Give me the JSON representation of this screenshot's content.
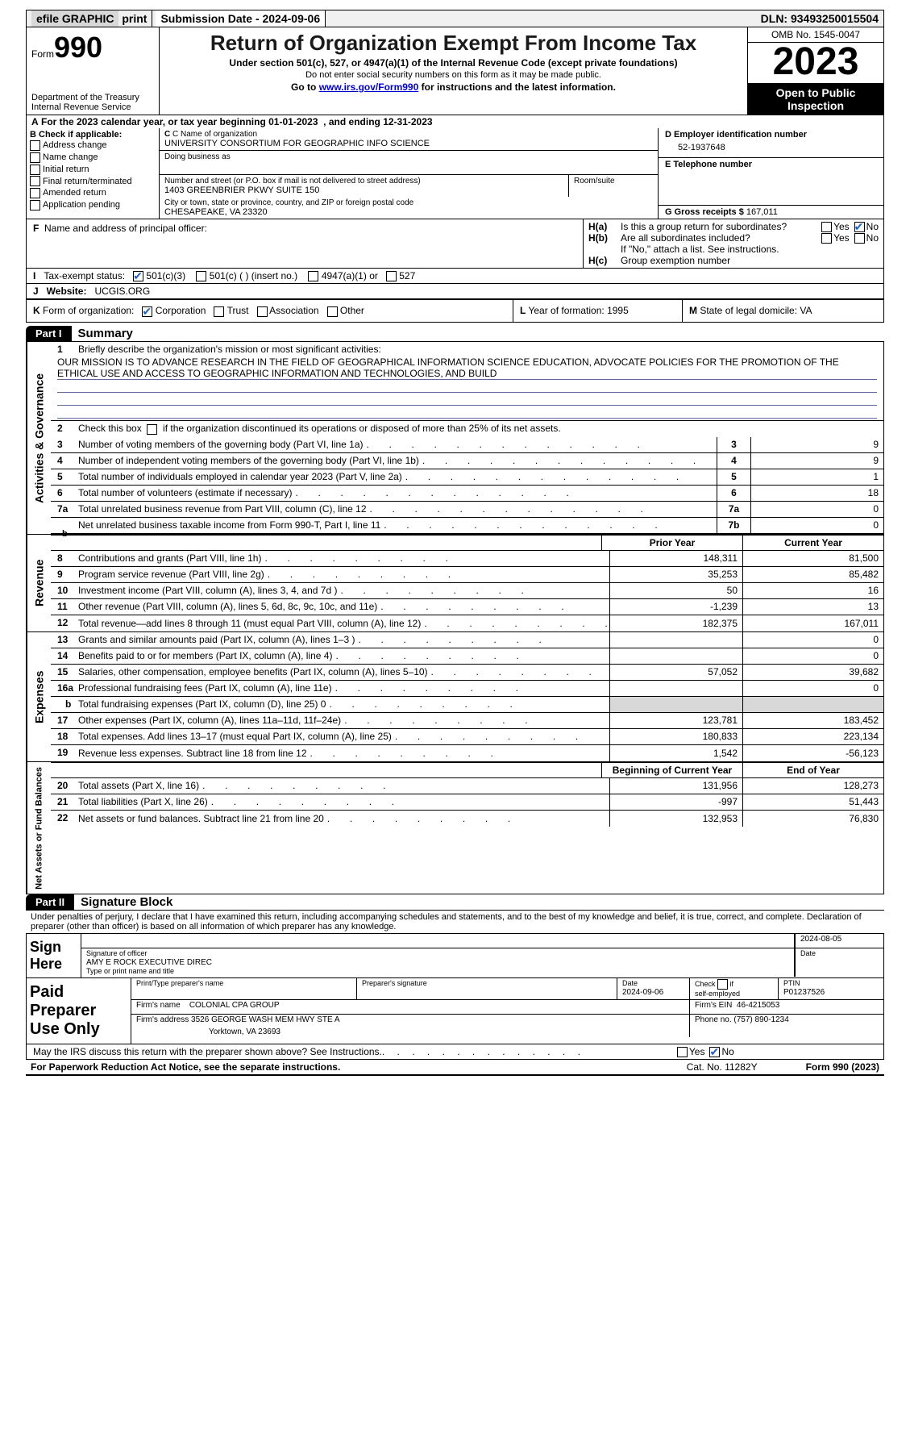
{
  "topbar": {
    "efile_label": "efile GRAPHIC",
    "print": "print",
    "submission_label": "Submission Date - 2024-09-06",
    "dln_label": "DLN: 93493250015504"
  },
  "header": {
    "form_label": "Form",
    "form_num": "990",
    "dept": "Department of the Treasury\nInternal Revenue Service",
    "title": "Return of Organization Exempt From Income Tax",
    "sub1": "Under section 501(c), 527, or 4947(a)(1) of the Internal Revenue Code (except private foundations)",
    "sub2": "Do not enter social security numbers on this form as it may be made public.",
    "goto_prefix": "Go to ",
    "goto_link": "www.irs.gov/Form990",
    "goto_suffix": " for instructions and the latest information.",
    "omb": "OMB No. 1545-0047",
    "year": "2023",
    "open": "Open to Public Inspection"
  },
  "lineA": "A For the 2023 calendar year, or tax year beginning 01-01-2023   , and ending 12-31-2023",
  "boxB": {
    "label": "B Check if applicable:",
    "opts": [
      "Address change",
      "Name change",
      "Initial return",
      "Final return/terminated",
      "Amended return",
      "Application pending"
    ]
  },
  "boxC": {
    "name_lbl": "C Name of organization",
    "name": "UNIVERSITY CONSORTIUM FOR GEOGRAPHIC INFO SCIENCE",
    "dba_lbl": "Doing business as",
    "addr_lbl": "Number and street (or P.O. box if mail is not delivered to street address)",
    "addr": "1403 GREENBRIER PKWY SUITE 150",
    "room_lbl": "Room/suite",
    "city_lbl": "City or town, state or province, country, and ZIP or foreign postal code",
    "city": "CHESAPEAKE, VA  23320"
  },
  "boxD": {
    "lbl": "D Employer identification number",
    "val": "52-1937648"
  },
  "boxE": {
    "lbl": "E Telephone number",
    "val": ""
  },
  "boxG": {
    "lbl": "G Gross receipts $",
    "val": "167,011"
  },
  "boxF": {
    "lbl": "F  Name and address of principal officer:",
    "val": ""
  },
  "boxH": {
    "a_lbl": "H(a)",
    "a_txt": "Is this a group return for subordinates?",
    "b_lbl": "H(b)",
    "b_txt": "Are all subordinates included?",
    "b_note": "If \"No,\" attach a list. See instructions.",
    "c_lbl": "H(c)",
    "c_txt": "Group exemption number",
    "yes": "Yes",
    "no": "No"
  },
  "lineI": {
    "lbl": "I    Tax-exempt status:",
    "opts": [
      "501(c)(3)",
      "501(c) (  ) (insert no.)",
      "4947(a)(1) or",
      "527"
    ],
    "checked": 0
  },
  "lineJ": {
    "lbl": "J   Website:",
    "val": "UCGIS.ORG"
  },
  "lineK": {
    "lbl": "K Form of organization:",
    "opts": [
      "Corporation",
      "Trust",
      "Association",
      "Other"
    ],
    "checked": 0
  },
  "lineL": {
    "lbl": "L Year of formation:",
    "val": "1995"
  },
  "lineM": {
    "lbl": "M State of legal domicile:",
    "val": "VA"
  },
  "part1": {
    "tag": "Part I",
    "title": "Summary",
    "q1_lbl": "Briefly describe the organization's mission or most significant activities:",
    "q1_txt": "OUR MISSION IS TO ADVANCE RESEARCH IN THE FIELD OF GEOGRAPHICAL INFORMATION SCIENCE EDUCATION, ADVOCATE POLICIES FOR THE PROMOTION OF THE ETHICAL USE AND ACCESS TO GEOGRAPHIC INFORMATION AND TECHNOLOGIES, AND BUILD",
    "q2": "Check this box       if the organization discontinued its operations or disposed of more than 25% of its net assets.",
    "tab_ag": "Activities & Governance",
    "tab_rev": "Revenue",
    "tab_exp": "Expenses",
    "tab_net": "Net Assets or Fund Balances",
    "prior": "Prior Year",
    "current": "Current Year",
    "begin": "Beginning of Current Year",
    "endyr": "End of Year",
    "rows_simple": [
      {
        "n": "3",
        "lbl": "Number of voting members of the governing body (Part VI, line 1a)",
        "val": "9"
      },
      {
        "n": "4",
        "lbl": "Number of independent voting members of the governing body (Part VI, line 1b)",
        "val": "9"
      },
      {
        "n": "5",
        "lbl": "Total number of individuals employed in calendar year 2023 (Part V, line 2a)",
        "val": "1"
      },
      {
        "n": "6",
        "lbl": "Total number of volunteers (estimate if necessary)",
        "val": "18"
      },
      {
        "n": "7a",
        "lbl": "Total unrelated business revenue from Part VIII, column (C), line 12",
        "val": "0"
      },
      {
        "n": "7b",
        "lbl": "Net unrelated business taxable income from Form 990-T, Part I, line 11",
        "val": "0",
        "sub": true
      }
    ],
    "rows_rev": [
      {
        "n": "8",
        "lbl": "Contributions and grants (Part VIII, line 1h)",
        "p": "148,311",
        "c": "81,500"
      },
      {
        "n": "9",
        "lbl": "Program service revenue (Part VIII, line 2g)",
        "p": "35,253",
        "c": "85,482"
      },
      {
        "n": "10",
        "lbl": "Investment income (Part VIII, column (A), lines 3, 4, and 7d )",
        "p": "50",
        "c": "16"
      },
      {
        "n": "11",
        "lbl": "Other revenue (Part VIII, column (A), lines 5, 6d, 8c, 9c, 10c, and 11e)",
        "p": "-1,239",
        "c": "13"
      },
      {
        "n": "12",
        "lbl": "Total revenue—add lines 8 through 11 (must equal Part VIII, column (A), line 12)",
        "p": "182,375",
        "c": "167,011"
      }
    ],
    "rows_exp": [
      {
        "n": "13",
        "lbl": "Grants and similar amounts paid (Part IX, column (A), lines 1–3 )",
        "p": "",
        "c": "0"
      },
      {
        "n": "14",
        "lbl": "Benefits paid to or for members (Part IX, column (A), line 4)",
        "p": "",
        "c": "0"
      },
      {
        "n": "15",
        "lbl": "Salaries, other compensation, employee benefits (Part IX, column (A), lines 5–10)",
        "p": "57,052",
        "c": "39,682"
      },
      {
        "n": "16a",
        "lbl": "Professional fundraising fees (Part IX, column (A), line 11e)",
        "p": "",
        "c": "0"
      },
      {
        "n": "b",
        "lbl": "Total fundraising expenses (Part IX, column (D), line 25) 0",
        "p": "grey",
        "c": "grey",
        "sub": true
      },
      {
        "n": "17",
        "lbl": "Other expenses (Part IX, column (A), lines 11a–11d, 11f–24e)",
        "p": "123,781",
        "c": "183,452"
      },
      {
        "n": "18",
        "lbl": "Total expenses. Add lines 13–17 (must equal Part IX, column (A), line 25)",
        "p": "180,833",
        "c": "223,134"
      },
      {
        "n": "19",
        "lbl": "Revenue less expenses. Subtract line 18 from line 12",
        "p": "1,542",
        "c": "-56,123"
      }
    ],
    "rows_net": [
      {
        "n": "20",
        "lbl": "Total assets (Part X, line 16)",
        "p": "131,956",
        "c": "128,273"
      },
      {
        "n": "21",
        "lbl": "Total liabilities (Part X, line 26)",
        "p": "-997",
        "c": "51,443"
      },
      {
        "n": "22",
        "lbl": "Net assets or fund balances. Subtract line 21 from line 20",
        "p": "132,953",
        "c": "76,830"
      }
    ]
  },
  "part2": {
    "tag": "Part II",
    "title": "Signature Block",
    "intro": "Under penalties of perjury, I declare that I have examined this return, including accompanying schedules and statements, and to the best of my knowledge and belief, it is true, correct, and complete. Declaration of preparer (other than officer) is based on all information of which preparer has any knowledge.",
    "sign_here": "Sign Here",
    "sig_of": "Signature of officer",
    "sig_date_lbl": "Date",
    "sig_date": "2024-08-05",
    "officer": "AMY E ROCK  EXECUTIVE DIREC",
    "type_lbl": "Type or print name and title",
    "paid": "Paid Preparer Use Only",
    "prep_name_lbl": "Print/Type preparer's name",
    "prep_sig_lbl": "Preparer's signature",
    "prep_date_lbl": "Date",
    "prep_date": "2024-09-06",
    "self_emp": "Check       if self-employed",
    "ptin_lbl": "PTIN",
    "ptin": "P01237526",
    "firm_name_lbl": "Firm's name",
    "firm_name": "COLONIAL CPA GROUP",
    "firm_ein_lbl": "Firm's EIN",
    "firm_ein": "46-4215053",
    "firm_addr_lbl": "Firm's address",
    "firm_addr1": "3526 GEORGE WASH MEM HWY STE A",
    "firm_addr2": "Yorktown, VA  23693",
    "phone_lbl": "Phone no.",
    "phone": "(757) 890-1234",
    "may_irs": "May the IRS discuss this return with the preparer shown above? See Instructions."
  },
  "footer": {
    "pra": "For Paperwork Reduction Act Notice, see the separate instructions.",
    "cat": "Cat. No. 11282Y",
    "form": "Form 990 (2023)"
  }
}
